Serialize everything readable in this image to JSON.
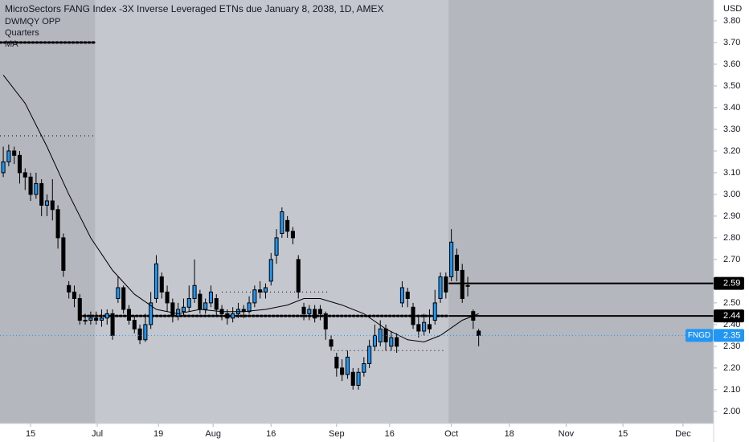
{
  "chart_data": {
    "type": "candlestick",
    "title": "MicroSectors FANG Index -3X Inverse Leveraged ETNs due January 8, 2038, 1D, AMEX",
    "indicators": [
      "DWMQY OPP",
      "Quarters",
      "MA"
    ],
    "currency": "USD",
    "up_color": "#2196f3",
    "down_color": "#000000",
    "ylim": [
      1.944,
      3.896
    ],
    "xlim": [
      -0.6,
      130
    ],
    "yticks": [
      {
        "value": 2.0,
        "label": "2.00"
      },
      {
        "value": 2.1,
        "label": "2.10"
      },
      {
        "value": 2.2,
        "label": "2.20"
      },
      {
        "value": 2.3,
        "label": "2.30"
      },
      {
        "value": 2.4,
        "label": "2.40"
      },
      {
        "value": 2.5,
        "label": "2.50"
      },
      {
        "value": 2.6,
        "label": "2.60"
      },
      {
        "value": 2.7,
        "label": "2.70"
      },
      {
        "value": 2.8,
        "label": "2.80"
      },
      {
        "value": 2.9,
        "label": "2.90"
      },
      {
        "value": 3.0,
        "label": "3.00"
      },
      {
        "value": 3.1,
        "label": "3.10"
      },
      {
        "value": 3.2,
        "label": "3.20"
      },
      {
        "value": 3.3,
        "label": "3.30"
      },
      {
        "value": 3.4,
        "label": "3.40"
      },
      {
        "value": 3.5,
        "label": "3.50"
      },
      {
        "value": 3.6,
        "label": "3.60"
      },
      {
        "value": 3.7,
        "label": "3.70"
      },
      {
        "value": 3.8,
        "label": "3.80"
      }
    ],
    "xticks": [
      {
        "value": 5,
        "label": "15"
      },
      {
        "value": 17.2,
        "label": "Jul"
      },
      {
        "value": 28.4,
        "label": "19"
      },
      {
        "value": 38.4,
        "label": "Aug"
      },
      {
        "value": 49,
        "label": "16"
      },
      {
        "value": 61,
        "label": "Sep"
      },
      {
        "value": 70.7,
        "label": "16"
      },
      {
        "value": 82,
        "label": "Oct"
      },
      {
        "value": 92.6,
        "label": "18"
      },
      {
        "value": 103,
        "label": "Nov"
      },
      {
        "value": 113.4,
        "label": "15"
      },
      {
        "value": 124.4,
        "label": "Dec"
      }
    ],
    "shaded_ranges": [
      [
        -0.6,
        16.8
      ],
      [
        81.5,
        130
      ]
    ],
    "series": [
      {
        "name": "FNGD",
        "open": [
          3.1,
          3.15,
          3.2,
          3.18,
          3.1,
          3.08,
          3.0,
          3.05,
          2.95,
          2.97,
          2.93,
          2.8,
          2.58,
          2.55,
          2.52,
          2.42,
          2.42,
          2.43,
          2.42,
          2.43,
          2.45,
          2.52,
          2.57,
          2.47,
          2.42,
          2.38,
          2.33,
          2.4,
          2.52,
          2.62,
          2.55,
          2.5,
          2.44,
          2.46,
          2.48,
          2.52,
          2.54,
          2.47,
          2.5,
          2.52,
          2.47,
          2.45,
          2.43,
          2.45,
          2.47,
          2.46,
          2.5,
          2.56,
          2.55,
          2.6,
          2.72,
          2.82,
          2.88,
          2.83,
          2.7,
          2.48,
          2.45,
          2.47,
          2.47,
          2.45,
          2.33,
          2.25,
          2.2,
          2.17,
          2.18,
          2.12,
          2.18,
          2.22,
          2.3,
          2.32,
          2.38,
          2.3,
          2.34,
          2.5,
          2.55,
          2.48,
          2.4,
          2.37,
          2.4,
          2.42,
          2.52,
          2.62,
          2.62,
          2.72,
          2.65,
          2.58,
          2.46,
          2.37
        ],
        "high": [
          3.22,
          3.23,
          3.22,
          3.2,
          3.12,
          3.1,
          3.1,
          3.07,
          3.0,
          3.07,
          2.95,
          2.82,
          2.6,
          2.58,
          2.54,
          2.45,
          2.46,
          2.46,
          2.47,
          2.47,
          2.47,
          2.62,
          2.58,
          2.49,
          2.44,
          2.4,
          2.45,
          2.55,
          2.72,
          2.64,
          2.58,
          2.52,
          2.5,
          2.52,
          2.58,
          2.7,
          2.56,
          2.52,
          2.58,
          2.54,
          2.49,
          2.47,
          2.48,
          2.5,
          2.49,
          2.53,
          2.58,
          2.6,
          2.59,
          2.73,
          2.84,
          2.94,
          2.9,
          2.85,
          2.72,
          2.5,
          2.49,
          2.49,
          2.49,
          2.46,
          2.35,
          2.27,
          2.24,
          2.28,
          2.2,
          2.2,
          2.25,
          2.33,
          2.4,
          2.42,
          2.4,
          2.37,
          2.36,
          2.6,
          2.57,
          2.5,
          2.44,
          2.45,
          2.47,
          2.56,
          2.64,
          2.64,
          2.84,
          2.75,
          2.68,
          2.62,
          2.47,
          2.38
        ],
        "low": [
          3.08,
          3.13,
          3.14,
          3.05,
          3.02,
          2.97,
          2.98,
          2.9,
          2.9,
          2.88,
          2.75,
          2.62,
          2.52,
          2.48,
          2.4,
          2.4,
          2.4,
          2.4,
          2.39,
          2.4,
          2.33,
          2.5,
          2.45,
          2.4,
          2.36,
          2.31,
          2.32,
          2.38,
          2.5,
          2.52,
          2.46,
          2.41,
          2.42,
          2.44,
          2.46,
          2.5,
          2.45,
          2.45,
          2.48,
          2.44,
          2.42,
          2.4,
          2.41,
          2.43,
          2.43,
          2.45,
          2.48,
          2.52,
          2.52,
          2.58,
          2.68,
          2.8,
          2.8,
          2.77,
          2.52,
          2.42,
          2.42,
          2.41,
          2.42,
          2.33,
          2.28,
          2.16,
          2.14,
          2.15,
          2.1,
          2.1,
          2.16,
          2.2,
          2.28,
          2.3,
          2.28,
          2.28,
          2.27,
          2.48,
          2.48,
          2.38,
          2.34,
          2.35,
          2.36,
          2.4,
          2.5,
          2.52,
          2.6,
          2.6,
          2.5,
          2.53,
          2.38,
          2.3
        ],
        "close": [
          3.15,
          3.2,
          3.18,
          3.1,
          3.08,
          3.0,
          3.05,
          2.95,
          2.97,
          2.93,
          2.8,
          2.65,
          2.55,
          2.52,
          2.42,
          2.42,
          2.43,
          2.42,
          2.43,
          2.45,
          2.35,
          2.57,
          2.47,
          2.42,
          2.38,
          2.33,
          2.4,
          2.5,
          2.68,
          2.55,
          2.5,
          2.44,
          2.47,
          2.48,
          2.52,
          2.58,
          2.47,
          2.5,
          2.55,
          2.47,
          2.45,
          2.43,
          2.45,
          2.47,
          2.46,
          2.5,
          2.56,
          2.55,
          2.57,
          2.7,
          2.8,
          2.92,
          2.83,
          2.8,
          2.55,
          2.45,
          2.47,
          2.43,
          2.45,
          2.38,
          2.3,
          2.2,
          2.17,
          2.25,
          2.12,
          2.18,
          2.22,
          2.3,
          2.35,
          2.38,
          2.32,
          2.34,
          2.3,
          2.57,
          2.52,
          2.4,
          2.37,
          2.41,
          2.38,
          2.5,
          2.62,
          2.55,
          2.78,
          2.65,
          2.52,
          2.58,
          2.42,
          2.35
        ]
      }
    ],
    "ma": {
      "x": [
        0,
        4,
        8,
        12,
        16,
        20,
        24,
        28,
        32,
        36,
        40,
        44,
        48,
        52,
        55,
        58,
        62,
        66,
        70,
        74,
        77,
        80,
        84,
        87
      ],
      "values": [
        3.55,
        3.42,
        3.22,
        3.0,
        2.8,
        2.65,
        2.54,
        2.47,
        2.45,
        2.47,
        2.46,
        2.46,
        2.47,
        2.49,
        2.52,
        2.52,
        2.49,
        2.45,
        2.38,
        2.33,
        2.32,
        2.35,
        2.42,
        2.45
      ]
    },
    "levels": [
      {
        "value": 2.59,
        "from": 81.5
      },
      {
        "value": 2.44,
        "from": 81.5
      }
    ],
    "dotted_levels": [
      {
        "value": 3.7,
        "from": -0.6,
        "to": 17
      },
      {
        "value": 3.27,
        "from": -0.6,
        "to": 16.5
      },
      {
        "value": 2.44,
        "from": 14,
        "to": 81.5
      },
      {
        "value": 2.55,
        "from": 40,
        "to": 59.5
      },
      {
        "value": 2.28,
        "from": 60.5,
        "to": 81
      }
    ],
    "last_price": 2.35
  }
}
